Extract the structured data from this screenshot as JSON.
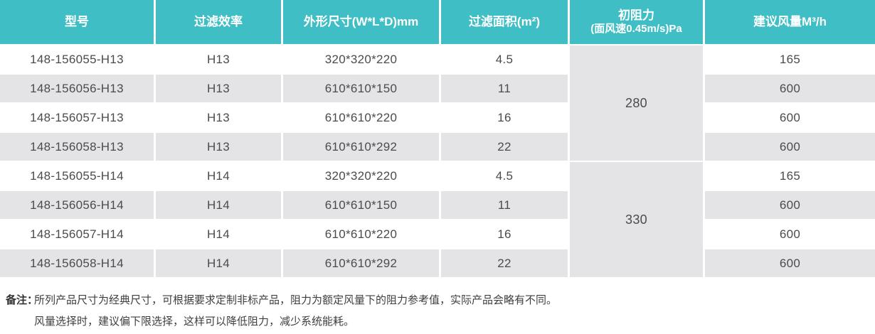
{
  "colors": {
    "header_bg": "#3FBFC5",
    "stripe_bg": "#E4E4E6",
    "body_text": "#4B4B4D",
    "header_text": "#FFFFFF"
  },
  "table": {
    "columns": {
      "model": "型号",
      "efficiency": "过滤效率",
      "dimensions": "外形尺寸(W*L*D)mm",
      "area": "过滤面积(m²)",
      "resistance_line1": "初阻力",
      "resistance_line2": "(面风速0.45m/s)Pa",
      "airflow": "建议风量M³/h"
    },
    "groups": [
      {
        "initial_resistance": "280",
        "rows": [
          {
            "model": "148-156055-H13",
            "efficiency": "H13",
            "dimensions": "320*320*220",
            "area": "4.5",
            "airflow": "165"
          },
          {
            "model": "148-156056-H13",
            "efficiency": "H13",
            "dimensions": "610*610*150",
            "area": "11",
            "airflow": "600"
          },
          {
            "model": "148-156057-H13",
            "efficiency": "H13",
            "dimensions": "610*610*220",
            "area": "16",
            "airflow": "600"
          },
          {
            "model": "148-156058-H13",
            "efficiency": "H13",
            "dimensions": "610*610*292",
            "area": "22",
            "airflow": "600"
          }
        ]
      },
      {
        "initial_resistance": "330",
        "rows": [
          {
            "model": "148-156055-H14",
            "efficiency": "H14",
            "dimensions": "320*320*220",
            "area": "4.5",
            "airflow": "165"
          },
          {
            "model": "148-156056-H14",
            "efficiency": "H14",
            "dimensions": "610*610*150",
            "area": "11",
            "airflow": "600"
          },
          {
            "model": "148-156057-H14",
            "efficiency": "H14",
            "dimensions": "610*610*220",
            "area": "16",
            "airflow": "600"
          },
          {
            "model": "148-156058-H14",
            "efficiency": "H14",
            "dimensions": "610*610*292",
            "area": "22",
            "airflow": "600"
          }
        ]
      }
    ]
  },
  "notes": {
    "label": "备注：",
    "lines": [
      "所列产品尺寸为经典尺寸，可根据要求定制非标产品，阻力为额定风量下的阻力参考值，实际产品会略有不同。",
      "风量选择时，建议偏下限选择，这样可以降低阻力，减少系统能耗。"
    ]
  }
}
